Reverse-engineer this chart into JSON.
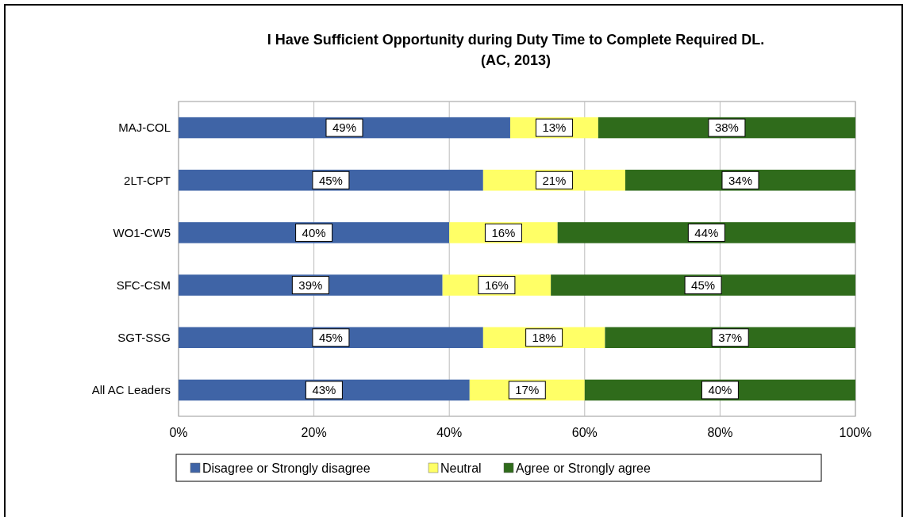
{
  "chart_data": {
    "type": "bar",
    "orientation": "horizontal",
    "stacked": true,
    "title": "I Have Sufficient Opportunity during Duty Time to Complete Required DL.",
    "subtitle": "(AC, 2013)",
    "categories": [
      "MAJ-COL",
      "2LT-CPT",
      "WO1-CW5",
      "SFC-CSM",
      "SGT-SSG",
      "All AC Leaders"
    ],
    "series": [
      {
        "name": "Disagree or Strongly disagree",
        "color": "#3f64a6",
        "values": [
          49,
          45,
          40,
          39,
          45,
          43
        ],
        "value_labels": [
          "49%",
          "45%",
          "40%",
          "39%",
          "45%",
          "43%"
        ]
      },
      {
        "name": "Neutral",
        "color": "#ffff66",
        "values": [
          13,
          21,
          16,
          16,
          18,
          17
        ],
        "value_labels": [
          "13%",
          "21%",
          "16%",
          "16%",
          "18%",
          "17%"
        ]
      },
      {
        "name": "Agree or Strongly agree",
        "color": "#2f6b1b",
        "values": [
          38,
          34,
          44,
          45,
          37,
          40
        ],
        "value_labels": [
          "38%",
          "34%",
          "44%",
          "45%",
          "37%",
          "40%"
        ]
      }
    ],
    "xlim": [
      0,
      100
    ],
    "xticks": [
      {
        "value": 0,
        "label": "0%"
      },
      {
        "value": 20,
        "label": "20%"
      },
      {
        "value": 40,
        "label": "40%"
      },
      {
        "value": 60,
        "label": "60%"
      },
      {
        "value": 80,
        "label": "80%"
      },
      {
        "value": 100,
        "label": "100%"
      }
    ],
    "grid": "x",
    "legend": "bottom"
  }
}
